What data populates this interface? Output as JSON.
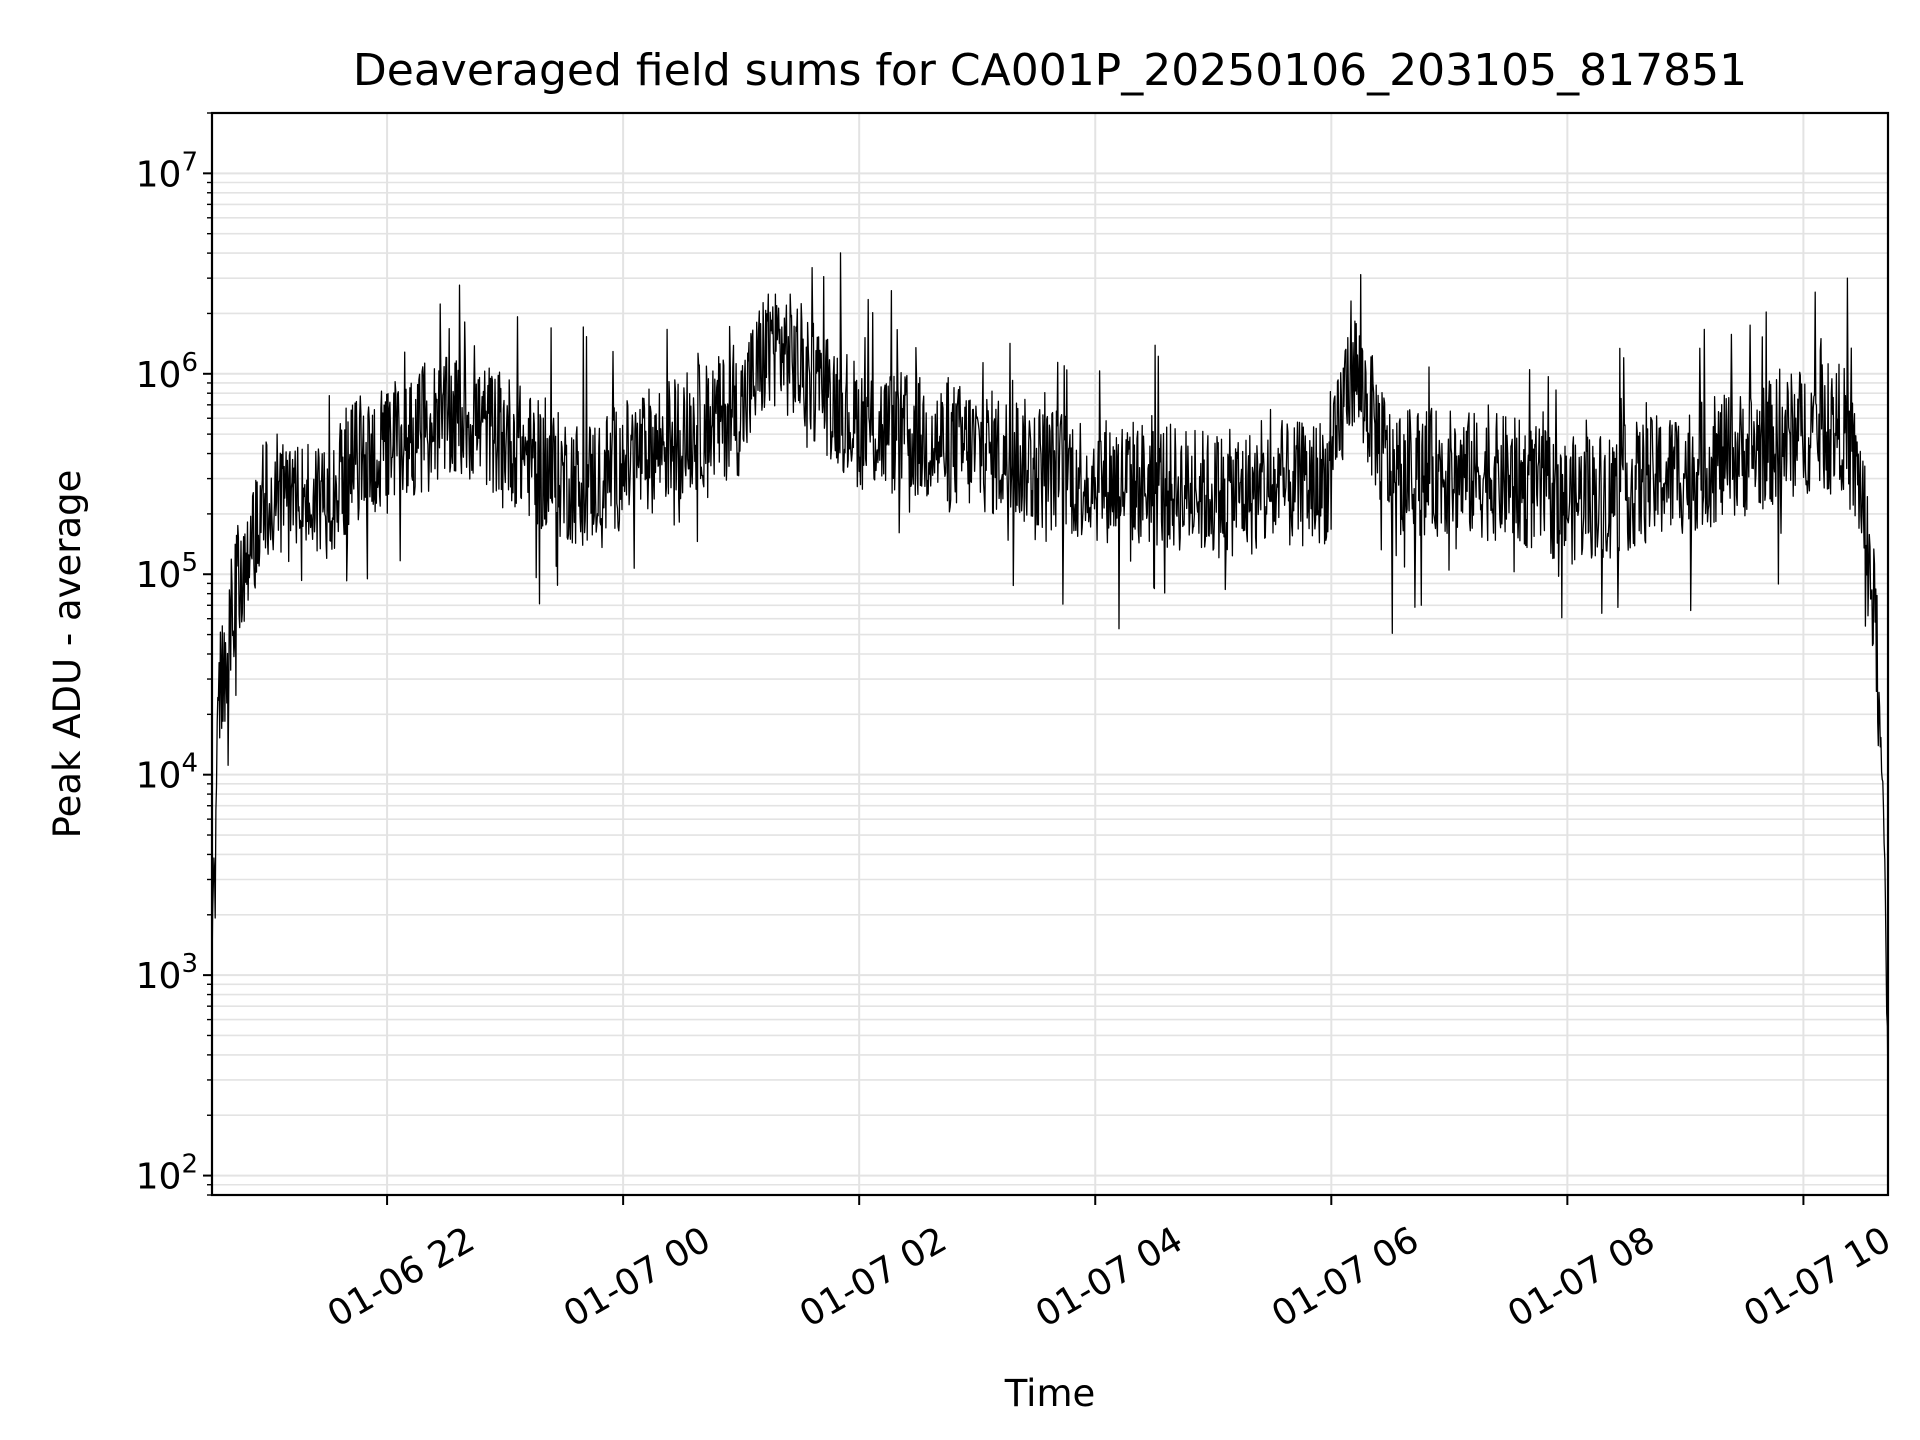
{
  "chart_data": {
    "type": "line",
    "title": "Deaveraged field sums for CA001P_20250106_203105_817851",
    "xlabel": "Time",
    "ylabel": "Peak ADU - average",
    "yscale": "log",
    "ylim": [
      80,
      20000000
    ],
    "xlim": [
      "2025-01-06 20:31",
      "2025-01-07 10:43"
    ],
    "grid": true,
    "minor_grid": true,
    "line_color": "#000000",
    "x_ticks": [
      {
        "value": "2025-01-06 22:00",
        "label": "01-06 22"
      },
      {
        "value": "2025-01-07 00:00",
        "label": "01-07 00"
      },
      {
        "value": "2025-01-07 02:00",
        "label": "01-07 02"
      },
      {
        "value": "2025-01-07 04:00",
        "label": "01-07 04"
      },
      {
        "value": "2025-01-07 06:00",
        "label": "01-07 06"
      },
      {
        "value": "2025-01-07 08:00",
        "label": "01-07 08"
      },
      {
        "value": "2025-01-07 10:00",
        "label": "01-07 10"
      }
    ],
    "y_ticks": [
      {
        "value": 100,
        "base": "10",
        "exp": "2"
      },
      {
        "value": 1000,
        "base": "10",
        "exp": "3"
      },
      {
        "value": 10000,
        "base": "10",
        "exp": "4"
      },
      {
        "value": 100000,
        "base": "10",
        "exp": "5"
      },
      {
        "value": 1000000,
        "base": "10",
        "exp": "6"
      },
      {
        "value": 10000000,
        "base": "10",
        "exp": "7"
      }
    ],
    "series": [
      {
        "x": [
          "2025-01-06 20:31",
          "2025-01-06 20:34",
          "2025-01-06 20:40",
          "2025-01-06 20:50",
          "2025-01-06 21:00",
          "2025-01-06 21:15",
          "2025-01-06 21:30",
          "2025-01-06 21:45",
          "2025-01-06 22:00",
          "2025-01-06 22:20",
          "2025-01-06 22:40",
          "2025-01-06 23:00",
          "2025-01-06 23:20",
          "2025-01-06 23:40",
          "2025-01-07 00:00",
          "2025-01-07 00:20",
          "2025-01-07 00:40",
          "2025-01-07 01:00",
          "2025-01-07 01:15",
          "2025-01-07 01:30",
          "2025-01-07 01:50",
          "2025-01-07 02:00",
          "2025-01-07 02:20",
          "2025-01-07 02:40",
          "2025-01-07 03:00",
          "2025-01-07 03:30",
          "2025-01-07 04:00",
          "2025-01-07 04:30",
          "2025-01-07 05:00",
          "2025-01-07 05:30",
          "2025-01-07 06:00",
          "2025-01-07 06:10",
          "2025-01-07 06:30",
          "2025-01-07 07:00",
          "2025-01-07 07:30",
          "2025-01-07 08:00",
          "2025-01-07 08:30",
          "2025-01-07 09:00",
          "2025-01-07 09:30",
          "2025-01-07 10:00",
          "2025-01-07 10:20",
          "2025-01-07 10:30",
          "2025-01-07 10:37",
          "2025-01-07 10:41",
          "2025-01-07 10:43"
        ],
        "y": [
          1200,
          20000,
          60000,
          150000,
          250000,
          230000,
          250000,
          380000,
          400000,
          560000,
          600000,
          500000,
          330000,
          280000,
          350000,
          450000,
          550000,
          650000,
          1500000,
          1100000,
          700000,
          550000,
          500000,
          450000,
          420000,
          350000,
          300000,
          280000,
          250000,
          260000,
          300000,
          1200000,
          330000,
          320000,
          300000,
          230000,
          270000,
          330000,
          400000,
          520000,
          550000,
          250000,
          50000,
          5000,
          300
        ]
      }
    ]
  }
}
